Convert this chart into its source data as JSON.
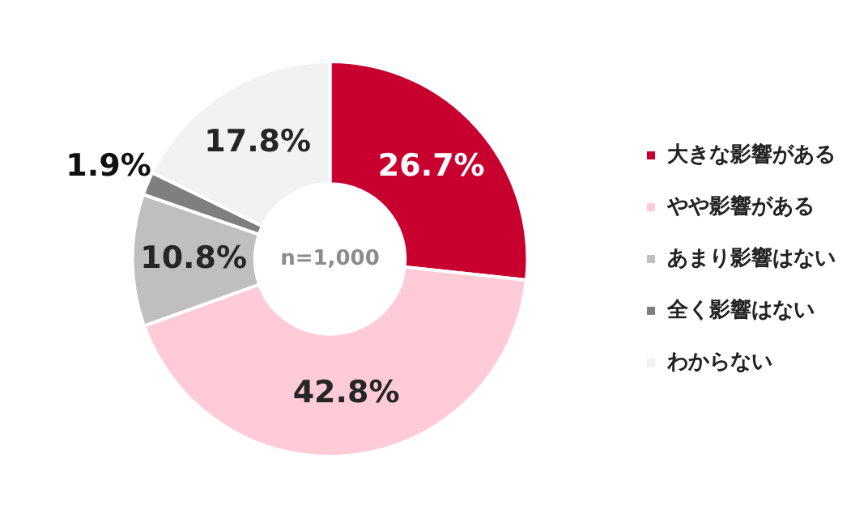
{
  "chart_data": {
    "type": "donut",
    "categories": [
      "大きな影響がある",
      "やや影響がある",
      "あまり影響はない",
      "全く影響はない",
      "わからない"
    ],
    "values": [
      26.7,
      42.8,
      10.8,
      1.9,
      17.8
    ],
    "colors": [
      "#c8002f",
      "#fecbd6",
      "#bfbfbf",
      "#7f7f7f",
      "#f2f2f2"
    ],
    "value_labels": [
      "26.7%",
      "42.8%",
      "10.8%",
      "1.9%",
      "17.8%"
    ],
    "annotations": [
      "n=1,000"
    ],
    "legend": "right"
  }
}
